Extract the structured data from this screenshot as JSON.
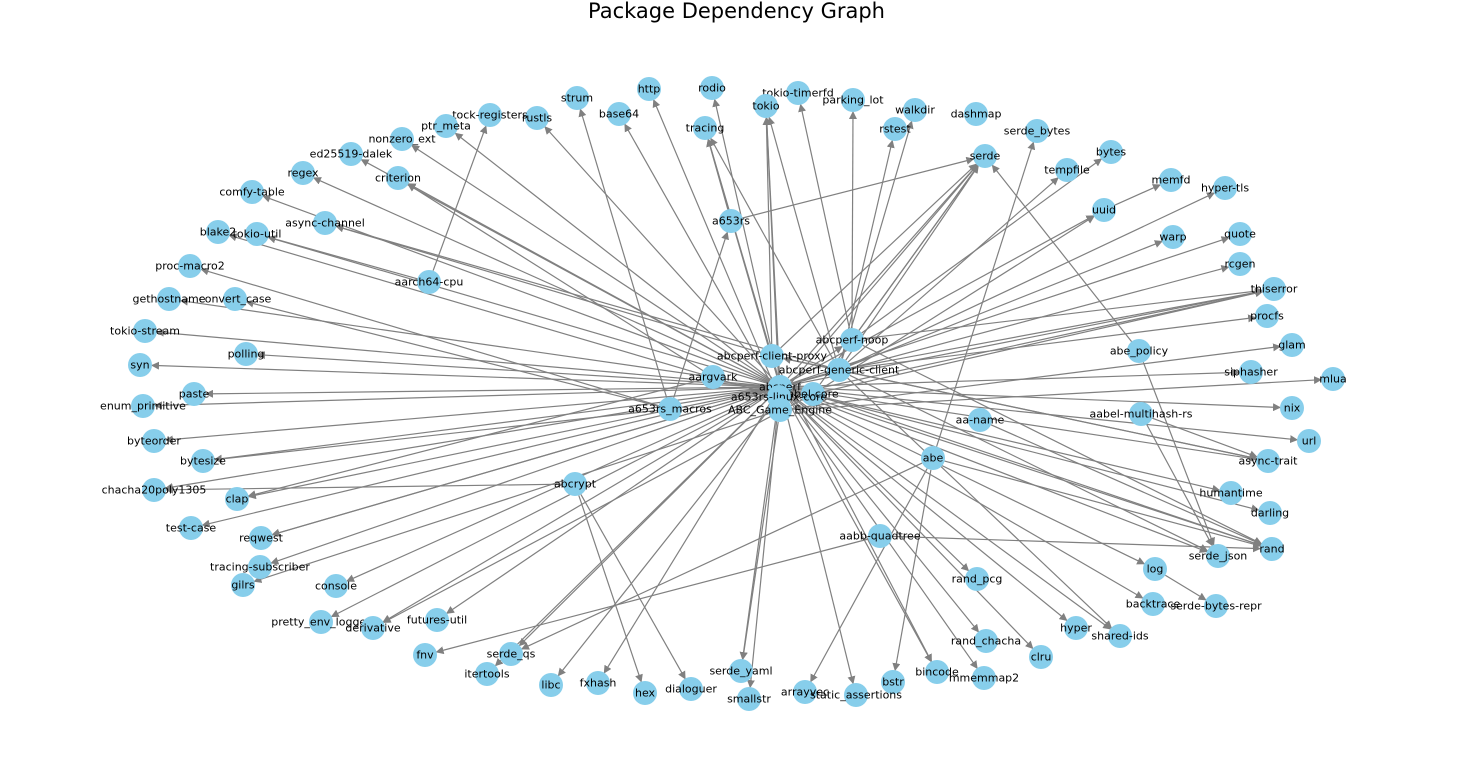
{
  "title": "Package Dependency Graph",
  "node_color": "#87ceeb",
  "edge_color": "#808080",
  "nodes": [
    "http",
    "rodio",
    "tokio-timerfd",
    "strum",
    "parking_lot",
    "tokio",
    "base64",
    "walkdir",
    "tracing",
    "rustls",
    "tock-registers",
    "dashmap",
    "rstest",
    "ptr_meta",
    "serde_bytes",
    "nonzero_ext",
    "serde",
    "bytes",
    "ed25519-dalek",
    "tempfile",
    "memfd",
    "regex",
    "criterion",
    "hyper-tls",
    "comfy-table",
    "a653rs",
    "uuid",
    "async-channel",
    "blake2",
    "tokio-util",
    "warp",
    "quote",
    "rcgen",
    "proc-macro2",
    "aarch64-cpu",
    "thiserror",
    "gethostname",
    "convert_case",
    "procfs",
    "abcperf-noop",
    "tokio-stream",
    "abcperf-client-proxy",
    "glam",
    "abe_policy",
    "syn",
    "polling",
    "abcperf-generic-client",
    "mlua",
    "siphasher",
    "aargvark",
    "abcperf",
    "paste",
    "abel-core",
    "a653rs-linux-core",
    "enum_primitive",
    "a653rs_macros",
    "nix",
    "aabel-multihash-rs",
    "ABC_Game_Engine",
    "aa-name",
    "url",
    "byteorder",
    "abe",
    "async-trait",
    "bytesize",
    "abcrypt",
    "chacha20poly1305",
    "humantime",
    "clap",
    "darling",
    "aabb-quadtree",
    "test-case",
    "reqwest",
    "rand",
    "serde_json",
    "tracing-subscriber",
    "log",
    "gilrs",
    "console",
    "rand_pcg",
    "serde-bytes-repr",
    "backtrace",
    "pretty_env_logger",
    "futures-util",
    "derivative",
    "hyper",
    "shared-ids",
    "rand_chacha",
    "fnv",
    "serde_qs",
    "clru",
    "itertools",
    "mmemmap2",
    "bincode",
    "serde_yaml",
    "fxhash",
    "libc",
    "bstr",
    "hex",
    "dialoguer",
    "arrayvec",
    "static_assertions",
    "smallstr"
  ],
  "edges": [
    [
      "a653rs-linux-core",
      "http"
    ],
    [
      "abcperf",
      "rodio"
    ],
    [
      "abcperf-noop",
      "tokio-timerfd"
    ],
    [
      "a653rs_macros",
      "strum"
    ],
    [
      "abcperf-noop",
      "parking_lot"
    ],
    [
      "abcperf",
      "tokio"
    ],
    [
      "abcperf-client-proxy",
      "tokio"
    ],
    [
      "abcperf-generic-client",
      "tokio"
    ],
    [
      "ABC_Game_Engine",
      "tokio"
    ],
    [
      "a653rs-linux-core",
      "base64"
    ],
    [
      "abcperf-generic-client",
      "walkdir"
    ],
    [
      "abcperf",
      "tracing"
    ],
    [
      "abcperf-client-proxy",
      "tracing"
    ],
    [
      "abcperf-generic-client",
      "tracing"
    ],
    [
      "a653rs",
      "tracing"
    ],
    [
      "abcperf",
      "rustls"
    ],
    [
      "aarch64-cpu",
      "tock-registers"
    ],
    [
      "abcperf-generic-client",
      "rstest"
    ],
    [
      "abcperf",
      "ptr_meta"
    ],
    [
      "abe",
      "serde_bytes"
    ],
    [
      "abcperf",
      "nonzero_ext"
    ],
    [
      "a653rs",
      "serde"
    ],
    [
      "abcperf",
      "serde"
    ],
    [
      "abcperf-client-proxy",
      "serde"
    ],
    [
      "abcperf-noop",
      "serde"
    ],
    [
      "abcperf-generic-client",
      "serde"
    ],
    [
      "abel-core",
      "serde"
    ],
    [
      "a653rs-linux-core",
      "serde"
    ],
    [
      "abcperf-noop",
      "bytes"
    ],
    [
      "abcperf",
      "ed25519-dalek"
    ],
    [
      "abcperf-generic-client",
      "tempfile"
    ],
    [
      "uuid",
      "memfd"
    ],
    [
      "abcperf",
      "regex"
    ],
    [
      "abcperf",
      "criterion"
    ],
    [
      "aargvark",
      "criterion"
    ],
    [
      "abcperf-generic-client",
      "hyper-tls"
    ],
    [
      "abcperf",
      "comfy-table"
    ],
    [
      "a653rs_macros",
      "a653rs"
    ],
    [
      "abcperf",
      "uuid"
    ],
    [
      "abel-core",
      "uuid"
    ],
    [
      "abcperf-generic-client",
      "async-channel"
    ],
    [
      "abcperf-client-proxy",
      "async-channel"
    ],
    [
      "a653rs-linux-core",
      "blake2"
    ],
    [
      "abcperf",
      "tokio-util"
    ],
    [
      "aarch64-cpu",
      "tokio-util"
    ],
    [
      "abcperf-generic-client",
      "warp"
    ],
    [
      "abcperf",
      "quote"
    ],
    [
      "abcperf",
      "rcgen"
    ],
    [
      "a653rs_macros",
      "proc-macro2"
    ],
    [
      "abcperf",
      "thiserror"
    ],
    [
      "abcperf-noop",
      "thiserror"
    ],
    [
      "abcperf-generic-client",
      "thiserror"
    ],
    [
      "abel-core",
      "thiserror"
    ],
    [
      "a653rs-linux-core",
      "thiserror"
    ],
    [
      "abcperf",
      "gethostname"
    ],
    [
      "a653rs_macros",
      "convert_case"
    ],
    [
      "abcperf-generic-client",
      "procfs"
    ],
    [
      "abcperf",
      "tokio-stream"
    ],
    [
      "ABC_Game_Engine",
      "glam"
    ],
    [
      "abcperf",
      "syn"
    ],
    [
      "abcperf",
      "polling"
    ],
    [
      "ABC_Game_Engine",
      "mlua"
    ],
    [
      "abcperf",
      "siphasher"
    ],
    [
      "abcperf",
      "paste"
    ],
    [
      "abcperf",
      "enum_primitive"
    ],
    [
      "abcperf",
      "nix"
    ],
    [
      "abcperf",
      "byteorder"
    ],
    [
      "abcperf",
      "url"
    ],
    [
      "abcperf",
      "async-trait"
    ],
    [
      "abcperf-client-proxy",
      "async-trait"
    ],
    [
      "abcperf-generic-client",
      "async-trait"
    ],
    [
      "aabel-multihash-rs",
      "async-trait"
    ],
    [
      "abcperf",
      "bytesize"
    ],
    [
      "a653rs_macros",
      "bytesize"
    ],
    [
      "abcperf",
      "chacha20poly1305"
    ],
    [
      "abcrypt",
      "chacha20poly1305"
    ],
    [
      "abcperf",
      "humantime"
    ],
    [
      "aargvark",
      "clap"
    ],
    [
      "abcperf",
      "clap"
    ],
    [
      "abcperf",
      "darling"
    ],
    [
      "abcperf",
      "test-case"
    ],
    [
      "abcperf-generic-client",
      "reqwest"
    ],
    [
      "abcperf",
      "reqwest"
    ],
    [
      "abcperf",
      "rand"
    ],
    [
      "abcperf-noop",
      "rand"
    ],
    [
      "abel-core",
      "rand"
    ],
    [
      "aabb-quadtree",
      "rand"
    ],
    [
      "aa-name",
      "rand"
    ],
    [
      "abe",
      "rand"
    ],
    [
      "abcperf",
      "serde_json"
    ],
    [
      "abcperf-generic-client",
      "serde_json"
    ],
    [
      "aabel-multihash-rs",
      "serde_json"
    ],
    [
      "abcperf",
      "tracing-subscriber"
    ],
    [
      "abcperf",
      "log"
    ],
    [
      "ABC_Game_Engine",
      "gilrs"
    ],
    [
      "abcperf",
      "console"
    ],
    [
      "abcperf",
      "rand_pcg"
    ],
    [
      "log",
      "serde-bytes-repr"
    ],
    [
      "abcperf",
      "backtrace"
    ],
    [
      "abcperf",
      "pretty_env_logger"
    ],
    [
      "abcperf",
      "futures-util"
    ],
    [
      "abcperf",
      "derivative"
    ],
    [
      "abel-core",
      "derivative"
    ],
    [
      "abcperf",
      "hyper"
    ],
    [
      "abcperf",
      "shared-ids"
    ],
    [
      "abcperf-generic-client",
      "shared-ids"
    ],
    [
      "abcperf",
      "rand_chacha"
    ],
    [
      "aabb-quadtree",
      "fnv"
    ],
    [
      "abcperf",
      "serde_qs"
    ],
    [
      "abcperf",
      "clru"
    ],
    [
      "abcperf",
      "itertools"
    ],
    [
      "abcperf",
      "mmemmap2"
    ],
    [
      "abcperf",
      "bincode"
    ],
    [
      "abcperf-client-proxy",
      "bincode"
    ],
    [
      "abcperf",
      "serde_yaml"
    ],
    [
      "abcperf",
      "fxhash"
    ],
    [
      "a653rs-linux-core",
      "libc"
    ],
    [
      "abe",
      "bstr"
    ],
    [
      "abcrypt",
      "hex"
    ],
    [
      "abcrypt",
      "dialoguer"
    ],
    [
      "abe",
      "arrayvec"
    ],
    [
      "abcperf",
      "static_assertions"
    ],
    [
      "abcperf",
      "smallstr"
    ],
    [
      "ABC_Game_Engine",
      "serde_yaml"
    ],
    [
      "abe_policy",
      "serde"
    ],
    [
      "abe_policy",
      "serde_json"
    ],
    [
      "abe",
      "serde_qs"
    ],
    [
      "abcperf",
      "abcperf-noop"
    ],
    [
      "abcperf-generic-client",
      "abcperf-client-proxy"
    ]
  ]
}
